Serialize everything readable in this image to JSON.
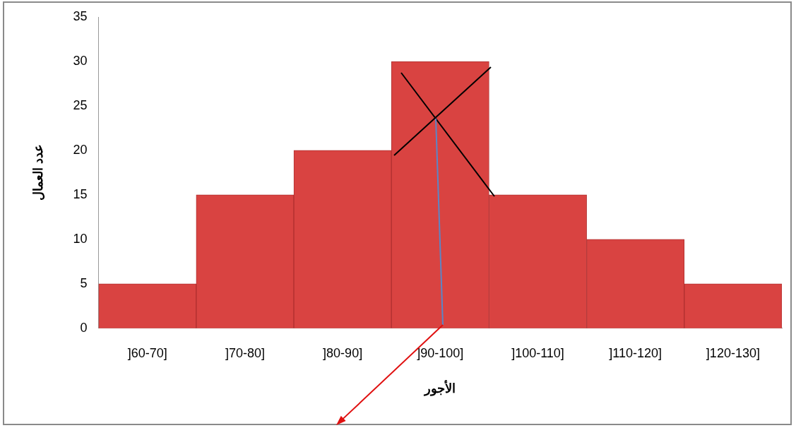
{
  "chart_data": {
    "type": "bar",
    "xlabel": "الأجور",
    "ylabel": "عدد العمال",
    "categories": [
      "]60-70]",
      "]70-80]",
      "]80-90]",
      "]90-100]",
      "]100-110]",
      "]110-120]",
      "]120-130]"
    ],
    "values": [
      5,
      15,
      20,
      30,
      15,
      10,
      5
    ],
    "color": "#d94341",
    "ylim": [
      0,
      35
    ],
    "yticks": [
      0,
      5,
      10,
      15,
      20,
      25,
      30,
      35
    ],
    "grid": false,
    "legend": false
  }
}
